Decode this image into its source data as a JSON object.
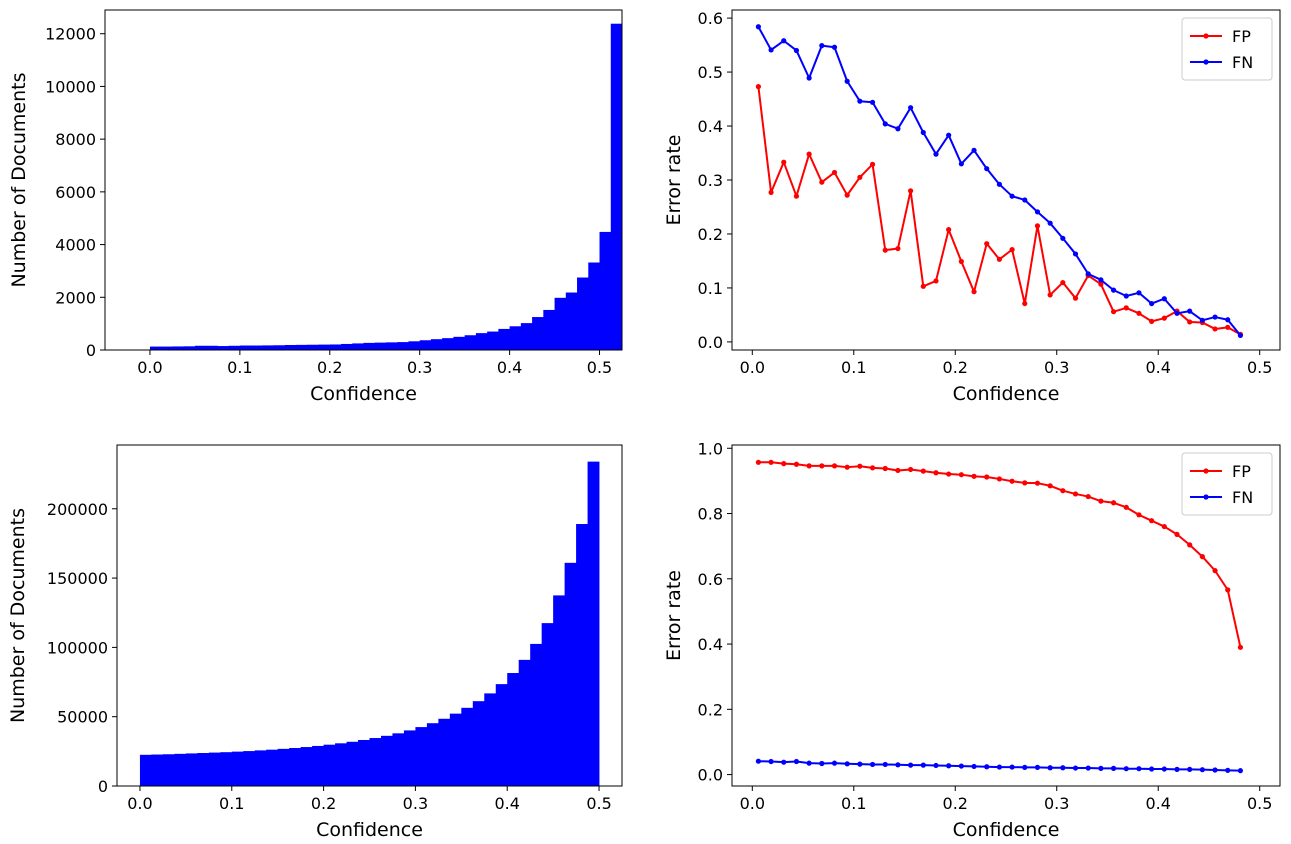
{
  "chart_data": [
    {
      "type": "bar",
      "panel": "top-left",
      "xlabel": "Confidence",
      "ylabel": "Number of Documents",
      "xlim": [
        -0.05,
        0.525
      ],
      "ylim": [
        0,
        12900
      ],
      "xticks": [
        0.0,
        0.1,
        0.2,
        0.3,
        0.4,
        0.5
      ],
      "yticks": [
        0,
        2000,
        4000,
        6000,
        8000,
        10000,
        12000
      ],
      "xtick_labels": [
        "0.0",
        "0.1",
        "0.2",
        "0.3",
        "0.4",
        "0.5"
      ],
      "ytick_labels": [
        "0",
        "2000",
        "4000",
        "6000",
        "8000",
        "10000",
        "12000"
      ],
      "bin_edges_start": 0.0,
      "bin_width": 0.0125,
      "values": [
        130,
        130,
        135,
        140,
        160,
        160,
        150,
        160,
        170,
        170,
        175,
        180,
        190,
        195,
        200,
        205,
        210,
        230,
        250,
        270,
        280,
        290,
        300,
        330,
        370,
        410,
        450,
        500,
        560,
        640,
        700,
        800,
        900,
        1020,
        1250,
        1520,
        1980,
        2180,
        2750,
        3320,
        4480,
        12380
      ],
      "color": "#0000ff",
      "grid": false
    },
    {
      "type": "line",
      "panel": "top-right",
      "xlabel": "Confidence",
      "ylabel": "Error rate",
      "xlim": [
        -0.02,
        0.52
      ],
      "ylim": [
        -0.015,
        0.615
      ],
      "xticks": [
        0.0,
        0.1,
        0.2,
        0.3,
        0.4,
        0.5
      ],
      "yticks": [
        0.0,
        0.1,
        0.2,
        0.3,
        0.4,
        0.5,
        0.6
      ],
      "xtick_labels": [
        "0.0",
        "0.1",
        "0.2",
        "0.3",
        "0.4",
        "0.5"
      ],
      "ytick_labels": [
        "0.0",
        "0.1",
        "0.2",
        "0.3",
        "0.4",
        "0.5",
        "0.6"
      ],
      "x_start": 0.006,
      "x_step": 0.0125,
      "legend": "top-right",
      "grid": false,
      "series": [
        {
          "name": "FP",
          "color": "#ff0000",
          "values": [
            0.473,
            0.277,
            0.333,
            0.27,
            0.348,
            0.296,
            0.314,
            0.272,
            0.305,
            0.329,
            0.17,
            0.173,
            0.28,
            0.103,
            0.113,
            0.208,
            0.149,
            0.093,
            0.182,
            0.153,
            0.171,
            0.071,
            0.215,
            0.087,
            0.11,
            0.081,
            0.123,
            0.107,
            0.056,
            0.063,
            0.053,
            0.038,
            0.044,
            0.057,
            0.037,
            0.036,
            0.024,
            0.027,
            0.014
          ]
        },
        {
          "name": "FN",
          "color": "#0000ff",
          "values": [
            0.584,
            0.541,
            0.558,
            0.54,
            0.489,
            0.549,
            0.546,
            0.483,
            0.446,
            0.444,
            0.404,
            0.395,
            0.434,
            0.388,
            0.348,
            0.383,
            0.33,
            0.355,
            0.321,
            0.292,
            0.27,
            0.263,
            0.241,
            0.22,
            0.192,
            0.163,
            0.126,
            0.115,
            0.096,
            0.085,
            0.091,
            0.071,
            0.08,
            0.053,
            0.057,
            0.04,
            0.046,
            0.041,
            0.012
          ]
        }
      ]
    },
    {
      "type": "bar",
      "panel": "bottom-left",
      "xlabel": "Confidence",
      "ylabel": "Number of Documents",
      "xlim": [
        -0.025,
        0.525
      ],
      "ylim": [
        0,
        246000
      ],
      "xticks": [
        0.0,
        0.1,
        0.2,
        0.3,
        0.4,
        0.5
      ],
      "yticks": [
        0,
        50000,
        100000,
        150000,
        200000
      ],
      "xtick_labels": [
        "0.0",
        "0.1",
        "0.2",
        "0.3",
        "0.4",
        "0.5"
      ],
      "ytick_labels": [
        "0",
        "50000",
        "100000",
        "150000",
        "200000"
      ],
      "bin_edges_start": 0.0,
      "bin_width": 0.0125,
      "values": [
        22500,
        22700,
        22900,
        23200,
        23500,
        23800,
        24100,
        24400,
        24800,
        25200,
        25700,
        26200,
        26800,
        27400,
        28100,
        28900,
        29800,
        30800,
        31900,
        33200,
        34600,
        36200,
        38000,
        40100,
        42500,
        45300,
        48500,
        52200,
        56400,
        61200,
        66800,
        73500,
        81500,
        91000,
        102500,
        117500,
        137500,
        161000,
        189000,
        234000
      ],
      "color": "#0000ff",
      "grid": false
    },
    {
      "type": "line",
      "panel": "bottom-right",
      "xlabel": "Confidence",
      "ylabel": "Error rate",
      "xlim": [
        -0.02,
        0.52
      ],
      "ylim": [
        -0.035,
        1.01
      ],
      "xticks": [
        0.0,
        0.1,
        0.2,
        0.3,
        0.4,
        0.5
      ],
      "yticks": [
        0.0,
        0.2,
        0.4,
        0.6,
        0.8,
        1.0
      ],
      "xtick_labels": [
        "0.0",
        "0.1",
        "0.2",
        "0.3",
        "0.4",
        "0.5"
      ],
      "ytick_labels": [
        "0.0",
        "0.2",
        "0.4",
        "0.6",
        "0.8",
        "1.0"
      ],
      "x_start": 0.006,
      "x_step": 0.0125,
      "legend": "top-right",
      "grid": false,
      "series": [
        {
          "name": "FP",
          "color": "#ff0000",
          "values": [
            0.957,
            0.957,
            0.953,
            0.951,
            0.946,
            0.946,
            0.946,
            0.942,
            0.945,
            0.94,
            0.938,
            0.932,
            0.935,
            0.93,
            0.925,
            0.921,
            0.919,
            0.914,
            0.912,
            0.906,
            0.899,
            0.894,
            0.893,
            0.885,
            0.87,
            0.86,
            0.852,
            0.838,
            0.833,
            0.819,
            0.796,
            0.778,
            0.76,
            0.736,
            0.704,
            0.668,
            0.625,
            0.566,
            0.39
          ]
        },
        {
          "name": "FN",
          "color": "#0000ff",
          "values": [
            0.041,
            0.04,
            0.038,
            0.04,
            0.035,
            0.034,
            0.035,
            0.033,
            0.032,
            0.031,
            0.031,
            0.03,
            0.029,
            0.029,
            0.028,
            0.027,
            0.026,
            0.025,
            0.024,
            0.023,
            0.023,
            0.022,
            0.022,
            0.021,
            0.021,
            0.02,
            0.02,
            0.019,
            0.019,
            0.018,
            0.018,
            0.017,
            0.017,
            0.016,
            0.016,
            0.015,
            0.014,
            0.013,
            0.012
          ]
        }
      ]
    }
  ]
}
